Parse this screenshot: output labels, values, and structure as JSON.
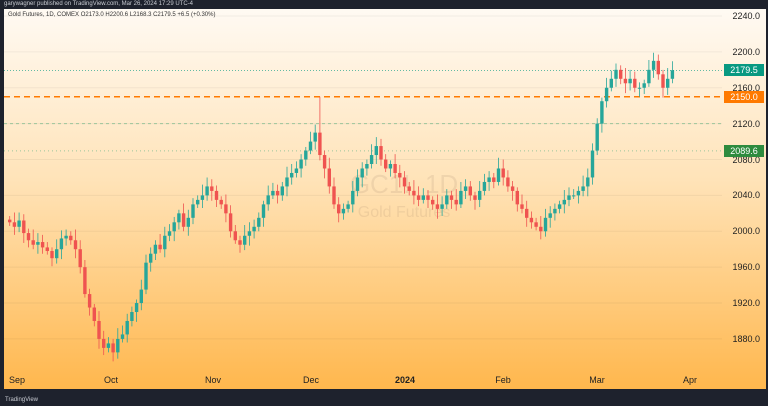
{
  "header": {
    "published": "garywagner published on TradingView.com, Mar 26, 2024 17:29 UTC-4"
  },
  "legend": {
    "text": "Gold Futures, 1D, COMEX  O2173.0  H2200.6  L2168.3  C2179.5  +6.5 (+0.30%)"
  },
  "watermark": {
    "symbol": "GC1!, 1D",
    "name": "Gold Futures"
  },
  "price_axis": {
    "labels": [
      "2240.0",
      "2200.0",
      "2160.0",
      "2120.0",
      "2080.0",
      "2040.0",
      "2000.0",
      "1960.0",
      "1920.0",
      "1880.0"
    ]
  },
  "tags": {
    "last": "2179.5",
    "level": "2150.0",
    "other": "2089.6"
  },
  "time_axis": {
    "labels": [
      "Sep",
      "Oct",
      "Nov",
      "Dec",
      "2024",
      "Feb",
      "Mar",
      "Apr"
    ]
  },
  "footer": {
    "brand": "TradingView"
  },
  "colors": {
    "up": "#26a69a",
    "down": "#ef5350",
    "level": "#ff7a00"
  },
  "chart_data": {
    "type": "candlestick",
    "price_range": [
      1860,
      2245
    ],
    "levels": [
      2150,
      2120,
      2089.6
    ],
    "closes": [
      2010,
      2005,
      2012,
      1998,
      1990,
      1985,
      1988,
      1982,
      1978,
      1970,
      1980,
      1992,
      1995,
      1990,
      1980,
      1960,
      1930,
      1915,
      1900,
      1880,
      1870,
      1875,
      1865,
      1880,
      1885,
      1900,
      1910,
      1920,
      1935,
      1965,
      1975,
      1985,
      1980,
      1995,
      2000,
      2010,
      2020,
      2005,
      2015,
      2030,
      2035,
      2040,
      2050,
      2045,
      2035,
      2030,
      2020,
      2000,
      1990,
      1985,
      1995,
      2000,
      2005,
      2015,
      2030,
      2040,
      2045,
      2040,
      2050,
      2060,
      2065,
      2070,
      2080,
      2090,
      2100,
      2110,
      2085,
      2070,
      2050,
      2030,
      2020,
      2025,
      2030,
      2045,
      2060,
      2070,
      2075,
      2085,
      2095,
      2080,
      2070,
      2075,
      2065,
      2060,
      2050,
      2045,
      2040,
      2035,
      2040,
      2035,
      2030,
      2025,
      2030,
      2040,
      2035,
      2030,
      2045,
      2050,
      2040,
      2035,
      2045,
      2055,
      2060,
      2055,
      2070,
      2060,
      2050,
      2045,
      2030,
      2025,
      2015,
      2010,
      2005,
      2000,
      2015,
      2020,
      2025,
      2030,
      2035,
      2040,
      2040,
      2045,
      2050,
      2060,
      2090,
      2120,
      2145,
      2160,
      2170,
      2180,
      2170,
      2165,
      2170,
      2160,
      2160,
      2165,
      2180,
      2190,
      2175,
      2160,
      2170,
      2179.5
    ]
  }
}
